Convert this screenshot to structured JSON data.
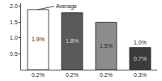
{
  "chart_data": {
    "type": "bar",
    "categories": [
      "0.2%",
      "0.2%",
      "0.2%",
      "0.3%"
    ],
    "values": [
      1.9,
      1.8,
      1.5,
      0.7
    ],
    "value_labels": [
      "1.9%",
      "1.8%",
      "1.5%",
      "0.7%"
    ],
    "data_labels": true,
    "colors": [
      "#ffffff",
      "#5a5a5a",
      "#8c8c8c",
      "#3c3c3c"
    ],
    "ylim": [
      0,
      2.1
    ],
    "yticks": [
      0.5,
      {
        "value": 1,
        "label": "1.0"
      },
      1.5,
      {
        "value": 2,
        "label": "2.0"
      }
    ],
    "annotations": [
      {
        "text": "Average",
        "x": 0,
        "y": 1.9
      },
      {
        "text": "1.0%",
        "x": 3,
        "y": 0.7
      }
    ]
  }
}
